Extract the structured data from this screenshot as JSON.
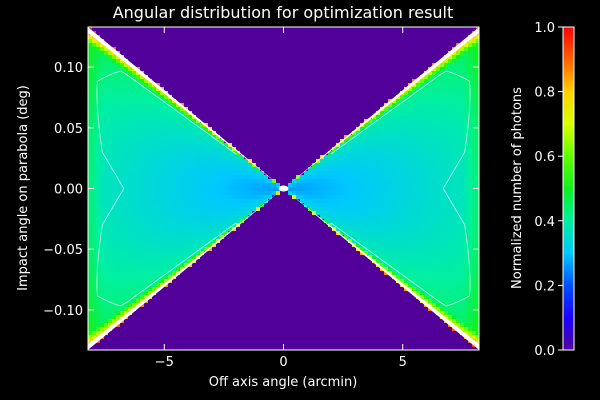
{
  "chart_data": {
    "type": "heatmap",
    "title": "Angular distribution for optimization result",
    "xlabel": "Off axis angle (arcmin)",
    "ylabel": "Impact angle on parabola (deg)",
    "xlim": [
      -8.2,
      8.2
    ],
    "ylim": [
      -0.133,
      0.133
    ],
    "xticks": [
      -5,
      0,
      5
    ],
    "xtick_labels": [
      "−5",
      "0",
      "5"
    ],
    "yticks": [
      0.1,
      0.05,
      0.0,
      -0.05,
      -0.1
    ],
    "ytick_labels": [
      "0.10",
      "0.05",
      "0.00",
      "−0.05",
      "−0.10"
    ],
    "colorbar": {
      "label": "Normalized number of photons",
      "range": [
        0.0,
        1.0
      ],
      "ticks": [
        0.0,
        0.2,
        0.4,
        0.6,
        0.8,
        1.0
      ],
      "tick_labels": [
        "0.0",
        "0.2",
        "0.4",
        "0.6",
        "0.8",
        "1.0"
      ],
      "colormap": "rainbow"
    },
    "background_color": "#52009a",
    "wedge_slope_deg_per_arcmin": 0.0162,
    "contour_level": 0.38,
    "description_values": {
      "center_min": 0.25,
      "edge_max": 1.0
    }
  }
}
